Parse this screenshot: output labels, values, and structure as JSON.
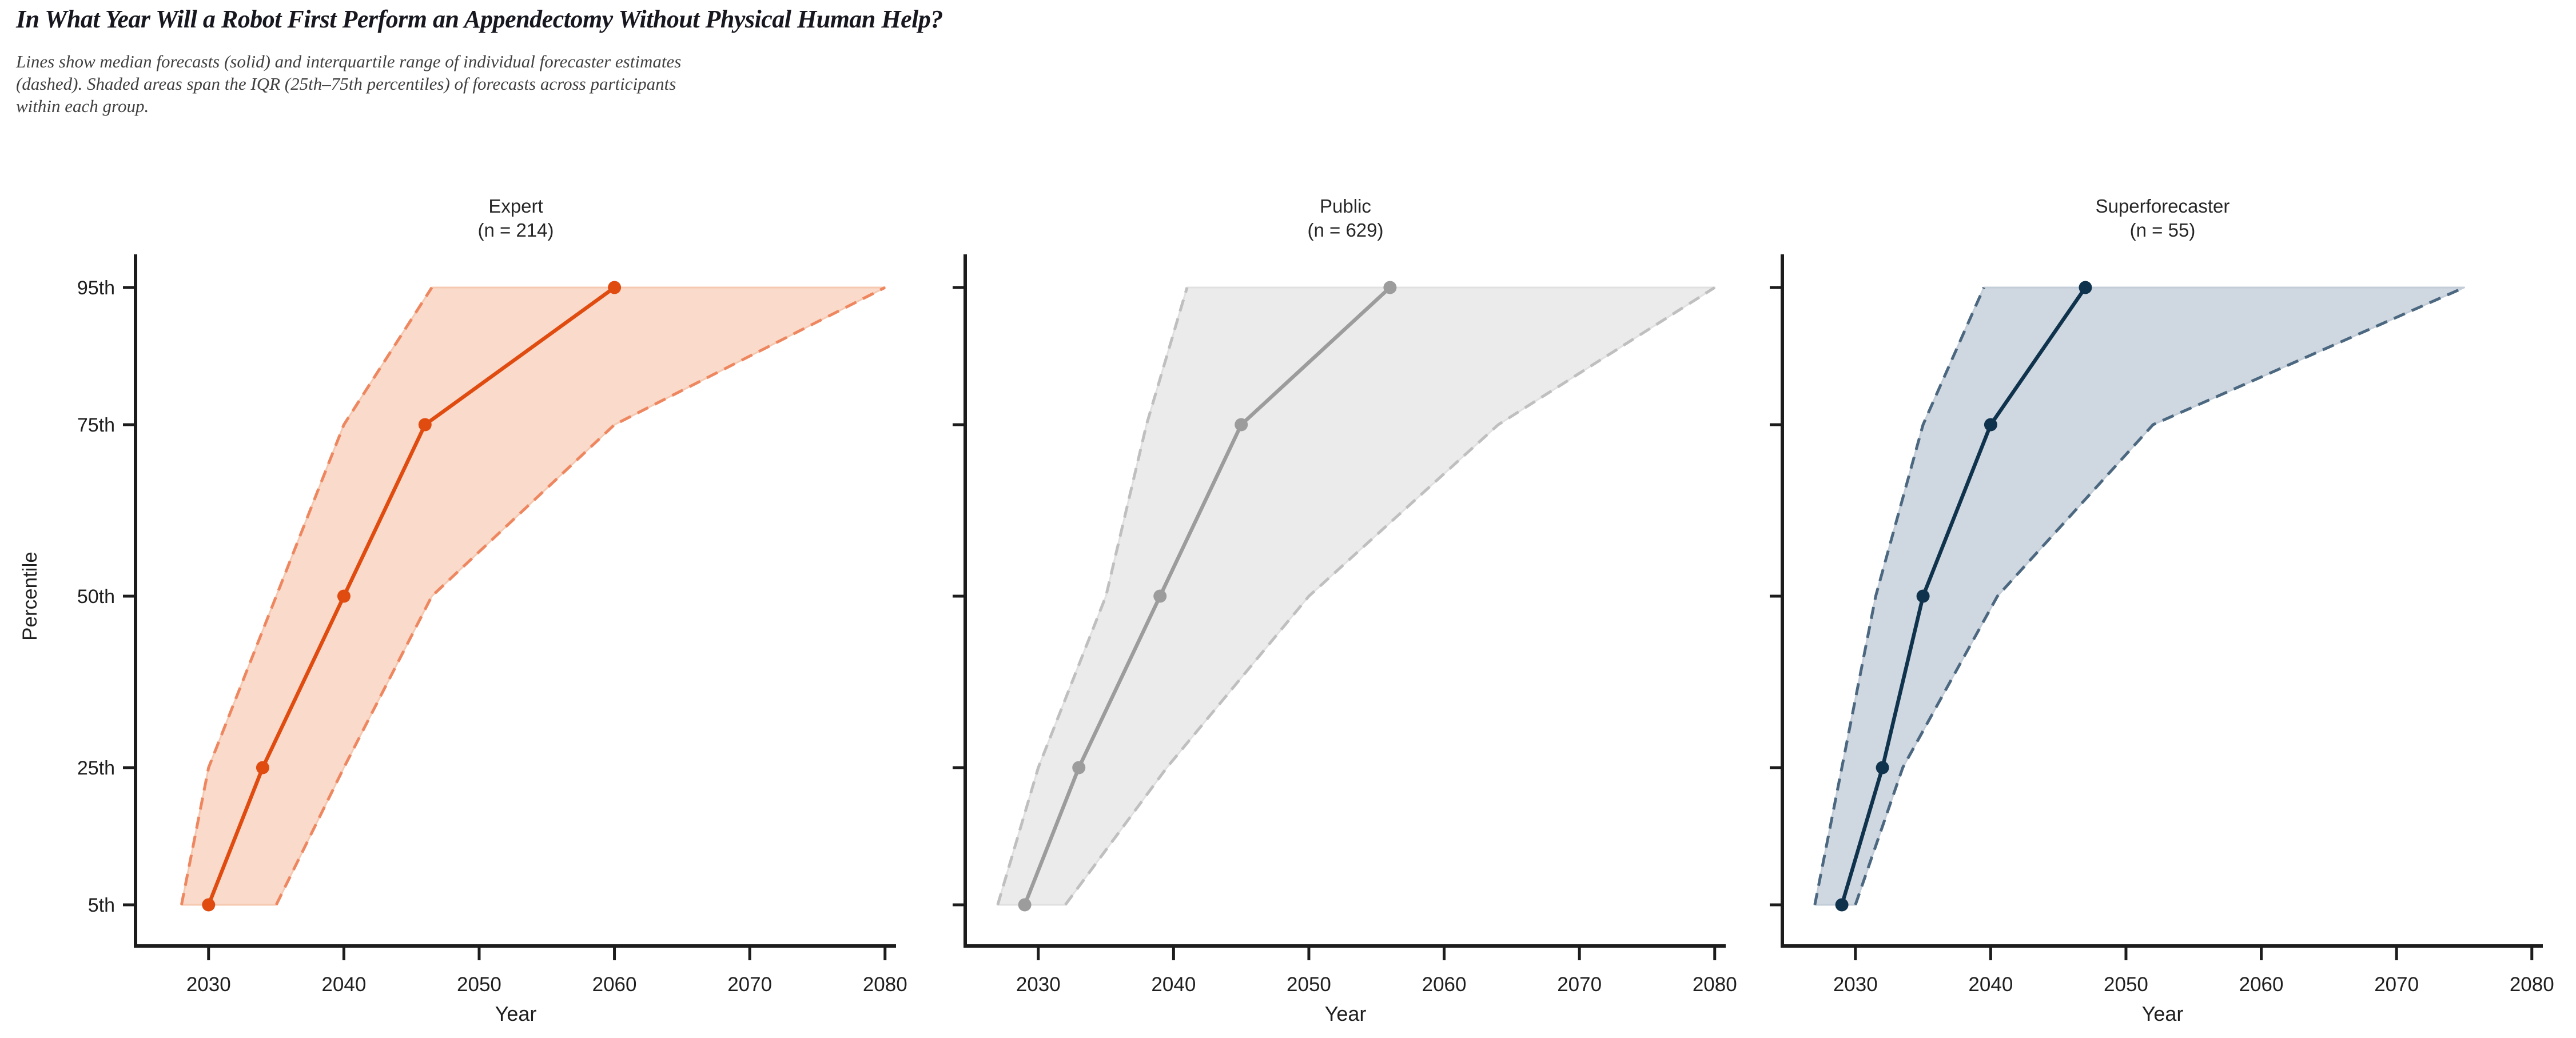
{
  "chart_data": {
    "type": "line",
    "title": "In What Year Will a Robot First Perform an Appendectomy Without Physical Human Help?",
    "subtitle": "Lines show median forecasts (solid) and interquartile range of individual forecaster estimates (dashed). Shaded areas span the IQR (25th–75th percentiles) of forecasts across participants within each group.",
    "xlabel": "Year",
    "ylabel": "Percentile",
    "x_ticks": [
      2030,
      2040,
      2050,
      2060,
      2070,
      2080
    ],
    "x_range": [
      2024.6,
      2080.8
    ],
    "percentiles": [
      5,
      25,
      50,
      75,
      95
    ],
    "y_tick_labels": [
      "5th",
      "25th",
      "50th",
      "75th",
      "95th"
    ],
    "legend_position": "none",
    "grid": false,
    "panels": [
      {
        "group": "Expert",
        "n": 214,
        "n_label": "(n = 214)",
        "colors": {
          "line": "#E04B10",
          "dashed": "#EE8760",
          "fill": "#FADACA",
          "band_edge": "#F6C8B0"
        },
        "median": [
          2030,
          2034,
          2040,
          2046,
          2060
        ],
        "iqr_lower": [
          2028,
          2030,
          2035,
          2040,
          2046.5
        ],
        "iqr_upper": [
          2035,
          2040,
          2046.5,
          2060,
          2080
        ]
      },
      {
        "group": "Public",
        "n": 629,
        "n_label": "(n = 629)",
        "colors": {
          "line": "#9C9C9C",
          "dashed": "#BFBFBF",
          "fill": "#EBEBEB",
          "band_edge": "#E0E0E0"
        },
        "median": [
          2029,
          2033,
          2039,
          2045,
          2056
        ],
        "iqr_lower": [
          2027,
          2030,
          2035,
          2038,
          2041
        ],
        "iqr_upper": [
          2032,
          2039.5,
          2050,
          2064,
          2080
        ]
      },
      {
        "group": "Superforecaster",
        "n": 55,
        "n_label": "(n = 55)",
        "colors": {
          "line": "#10334D",
          "dashed": "#4B6880",
          "fill": "#CFD7E0",
          "band_edge": "#C3CDD8"
        },
        "median": [
          2029,
          2032,
          2035,
          2040,
          2047
        ],
        "iqr_lower": [
          2027,
          2029,
          2031.5,
          2035,
          2039.5
        ],
        "iqr_upper": [
          2030,
          2033.5,
          2040.5,
          2052,
          2075
        ]
      }
    ],
    "style": {
      "axis_color": "#1c1c1c",
      "tick_label_color": "#1f1f1f",
      "panel_title_color": "#262626"
    }
  }
}
